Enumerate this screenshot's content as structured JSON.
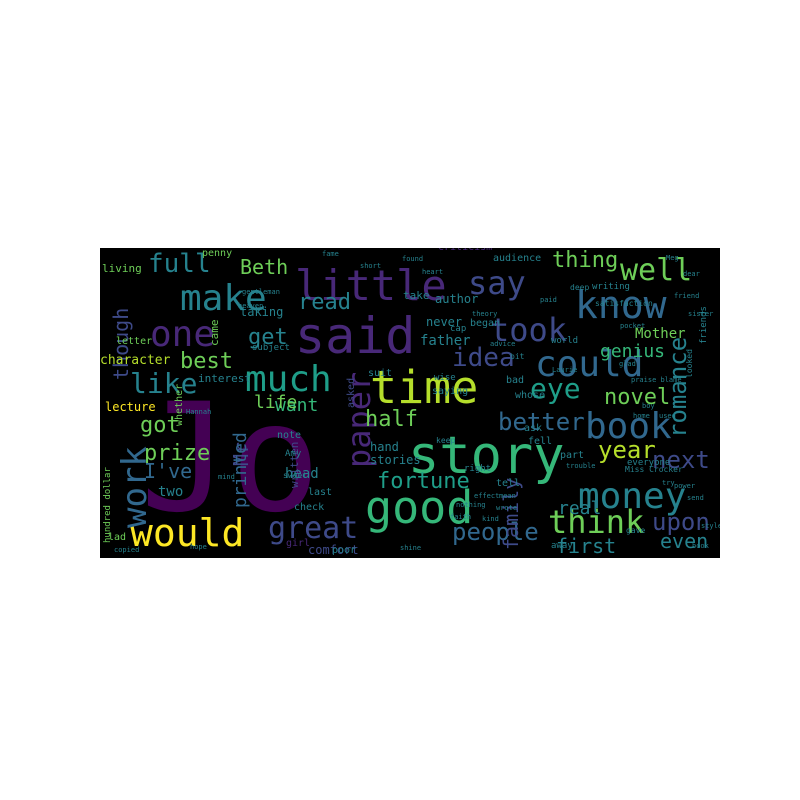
{
  "palette": {
    "background": "#000000",
    "purple": "#440154",
    "violet": "#482878",
    "indigo": "#3e4a89",
    "blue": "#31688e",
    "teal": "#26828e",
    "green": "#1f9e89",
    "mint": "#35b779",
    "lime": "#6ece58",
    "yellow": "#b5de2b",
    "gold": "#fde725"
  },
  "words": [
    {
      "text": "Jo",
      "color": "purple"
    },
    {
      "text": "said",
      "color": "violet"
    },
    {
      "text": "story",
      "color": "mint"
    },
    {
      "text": "time",
      "color": "yellow"
    },
    {
      "text": "good",
      "color": "mint"
    },
    {
      "text": "know",
      "color": "blue"
    },
    {
      "text": "little",
      "color": "violet"
    },
    {
      "text": "could",
      "color": "blue"
    },
    {
      "text": "book",
      "color": "blue"
    },
    {
      "text": "money",
      "color": "teal"
    },
    {
      "text": "make",
      "color": "teal"
    },
    {
      "text": "one",
      "color": "violet"
    },
    {
      "text": "much",
      "color": "green"
    },
    {
      "text": "say",
      "color": "indigo"
    },
    {
      "text": "took",
      "color": "indigo"
    },
    {
      "text": "would",
      "color": "gold"
    },
    {
      "text": "work",
      "color": "blue"
    },
    {
      "text": "think",
      "color": "lime"
    },
    {
      "text": "great",
      "color": "indigo"
    },
    {
      "text": "well",
      "color": "lime"
    },
    {
      "text": "paper",
      "color": "violet"
    },
    {
      "text": "like",
      "color": "teal"
    },
    {
      "text": "eye",
      "color": "green"
    },
    {
      "text": "idea",
      "color": "indigo"
    },
    {
      "text": "full",
      "color": "teal"
    },
    {
      "text": "better",
      "color": "blue"
    },
    {
      "text": "people",
      "color": "blue"
    },
    {
      "text": "fortune",
      "color": "green"
    },
    {
      "text": "year",
      "color": "yellow"
    },
    {
      "text": "next",
      "color": "indigo"
    },
    {
      "text": "upon",
      "color": "indigo"
    },
    {
      "text": "romance",
      "color": "teal"
    },
    {
      "text": "novel",
      "color": "lime"
    },
    {
      "text": "half",
      "color": "lime"
    },
    {
      "text": "read",
      "color": "teal"
    },
    {
      "text": "thing",
      "color": "lime"
    },
    {
      "text": "though",
      "color": "indigo"
    },
    {
      "text": "best",
      "color": "lime"
    },
    {
      "text": "got",
      "color": "lime"
    },
    {
      "text": "prize",
      "color": "lime"
    },
    {
      "text": "I've",
      "color": "blue"
    },
    {
      "text": "get",
      "color": "teal"
    },
    {
      "text": "Beth",
      "color": "lime"
    },
    {
      "text": "first",
      "color": "teal"
    },
    {
      "text": "even",
      "color": "teal"
    },
    {
      "text": "family",
      "color": "indigo"
    },
    {
      "text": "real",
      "color": "teal"
    },
    {
      "text": "want",
      "color": "mint"
    },
    {
      "text": "life",
      "color": "lime"
    },
    {
      "text": "Mr",
      "color": "indigo"
    },
    {
      "text": "printed",
      "color": "blue"
    },
    {
      "text": "genius",
      "color": "mint"
    },
    {
      "text": "Mother",
      "color": "lime"
    },
    {
      "text": "character",
      "color": "yellow"
    },
    {
      "text": "lecture",
      "color": "gold"
    },
    {
      "text": "two",
      "color": "teal"
    },
    {
      "text": "comfort",
      "color": "indigo"
    },
    {
      "text": "hand",
      "color": "teal"
    },
    {
      "text": "stories",
      "color": "teal"
    },
    {
      "text": "head",
      "color": "teal"
    },
    {
      "text": "written",
      "color": "indigo"
    },
    {
      "text": "interest",
      "color": "teal"
    },
    {
      "text": "taking",
      "color": "teal"
    },
    {
      "text": "came",
      "color": "lime"
    },
    {
      "text": "letter",
      "color": "lime"
    },
    {
      "text": "living",
      "color": "lime"
    },
    {
      "text": "whether",
      "color": "lime"
    },
    {
      "text": "penny",
      "color": "lime"
    },
    {
      "text": "audience",
      "color": "teal"
    },
    {
      "text": "criticism",
      "color": "violet"
    },
    {
      "text": "friends",
      "color": "teal"
    },
    {
      "text": "author",
      "color": "teal"
    },
    {
      "text": "never",
      "color": "teal"
    },
    {
      "text": "began",
      "color": "teal"
    },
    {
      "text": "father",
      "color": "teal"
    },
    {
      "text": "take",
      "color": "teal"
    },
    {
      "text": "world",
      "color": "teal"
    },
    {
      "text": "asked",
      "color": "indigo"
    },
    {
      "text": "suit",
      "color": "teal"
    },
    {
      "text": "saying",
      "color": "teal"
    },
    {
      "text": "whose",
      "color": "teal"
    },
    {
      "text": "bad",
      "color": "teal"
    },
    {
      "text": "part",
      "color": "teal"
    },
    {
      "text": "everyone",
      "color": "teal"
    },
    {
      "text": "ask",
      "color": "teal"
    },
    {
      "text": "fell",
      "color": "teal"
    },
    {
      "text": "tell",
      "color": "teal"
    },
    {
      "text": "right",
      "color": "teal"
    },
    {
      "text": "note",
      "color": "teal"
    },
    {
      "text": "Amy",
      "color": "teal"
    },
    {
      "text": "check",
      "color": "teal"
    },
    {
      "text": "last",
      "color": "teal"
    },
    {
      "text": "sweet",
      "color": "teal"
    },
    {
      "text": "poor",
      "color": "teal"
    },
    {
      "text": "hundred dollar",
      "color": "lime"
    },
    {
      "text": "girl",
      "color": "violet"
    },
    {
      "text": "lad",
      "color": "lime"
    },
    {
      "text": "subject",
      "color": "teal"
    },
    {
      "text": "cap",
      "color": "teal"
    },
    {
      "text": "away",
      "color": "teal"
    },
    {
      "text": "Miss Crocker",
      "color": "teal"
    },
    {
      "text": "gave",
      "color": "teal"
    },
    {
      "text": "copied",
      "color": "teal"
    },
    {
      "text": "Hannah",
      "color": "teal"
    },
    {
      "text": "satisfaction",
      "color": "teal"
    },
    {
      "text": "writing",
      "color": "teal"
    },
    {
      "text": "deep",
      "color": "teal"
    },
    {
      "text": "bit",
      "color": "teal"
    },
    {
      "text": "wise",
      "color": "teal"
    },
    {
      "text": "Meg",
      "color": "teal"
    },
    {
      "text": "keep",
      "color": "teal"
    },
    {
      "text": "gentleman",
      "color": "teal"
    },
    {
      "text": "heaven",
      "color": "teal"
    },
    {
      "text": "boy",
      "color": "teal"
    },
    {
      "text": "looked",
      "color": "teal"
    },
    {
      "text": "nothing",
      "color": "teal"
    },
    {
      "text": "praise blame",
      "color": "teal"
    },
    {
      "text": "effect",
      "color": "teal"
    },
    {
      "text": "mean",
      "color": "teal"
    },
    {
      "text": "found",
      "color": "teal"
    },
    {
      "text": "fame",
      "color": "teal"
    },
    {
      "text": "short",
      "color": "teal"
    },
    {
      "text": "dear",
      "color": "teal"
    },
    {
      "text": "sister",
      "color": "teal"
    },
    {
      "text": "heart",
      "color": "teal"
    },
    {
      "text": "power",
      "color": "teal"
    },
    {
      "text": "send",
      "color": "teal"
    },
    {
      "text": "style",
      "color": "teal"
    },
    {
      "text": "book",
      "color": "teal"
    },
    {
      "text": "theory",
      "color": "teal"
    },
    {
      "text": "shine",
      "color": "teal"
    },
    {
      "text": "advice",
      "color": "teal"
    },
    {
      "text": "Laurie",
      "color": "teal"
    },
    {
      "text": "glad",
      "color": "teal"
    },
    {
      "text": "used",
      "color": "teal"
    },
    {
      "text": "home",
      "color": "teal"
    },
    {
      "text": "kind",
      "color": "teal"
    },
    {
      "text": "try",
      "color": "teal"
    },
    {
      "text": "wrote",
      "color": "teal"
    },
    {
      "text": "faith",
      "color": "teal"
    },
    {
      "text": "mind",
      "color": "teal"
    },
    {
      "text": "hope",
      "color": "teal"
    },
    {
      "text": "pocket",
      "color": "teal"
    },
    {
      "text": "paid",
      "color": "teal"
    },
    {
      "text": "friend",
      "color": "teal"
    },
    {
      "text": "trouble",
      "color": "teal"
    }
  ]
}
